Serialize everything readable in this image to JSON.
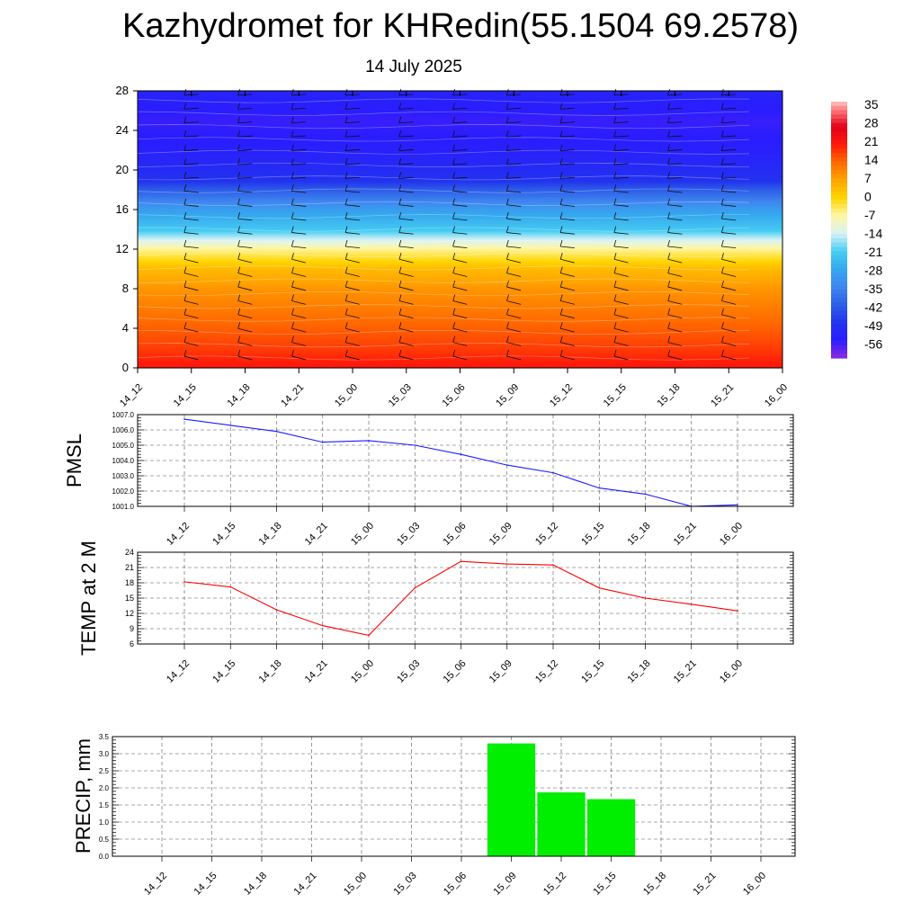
{
  "title": "Kazhydromet for KHRedin(55.1504 69.2578)",
  "subtitle": "14 July 2025",
  "chart_data": [
    {
      "type": "heatmap",
      "title": "",
      "xlabel": "",
      "ylabel": "",
      "x": [
        "14_12",
        "14_15",
        "14_18",
        "14_21",
        "15_00",
        "15_03",
        "15_06",
        "15_09",
        "15_12",
        "15_15",
        "15_18",
        "15_21",
        "16_00"
      ],
      "yticks": [
        0,
        4,
        8,
        12,
        16,
        20,
        24,
        28
      ],
      "ylim": [
        0,
        28
      ],
      "colorbar_labels": [
        35,
        28,
        21,
        14,
        7,
        0,
        -7,
        -14,
        -21,
        -28,
        -35,
        -42,
        -49,
        -56
      ],
      "colorbar_range": [
        -63,
        38
      ],
      "band_values": [
        {
          "level": 0,
          "value": 22
        },
        {
          "level": 2,
          "value": 18
        },
        {
          "level": 4,
          "value": 15
        },
        {
          "level": 6,
          "value": 12
        },
        {
          "level": 8,
          "value": 9
        },
        {
          "level": 10,
          "value": 4
        },
        {
          "level": 12,
          "value": -6
        },
        {
          "level": 13,
          "value": -14
        },
        {
          "level": 14,
          "value": -22
        },
        {
          "level": 16,
          "value": -30
        },
        {
          "level": 18,
          "value": -42
        },
        {
          "level": 19,
          "value": -50
        },
        {
          "level": 22,
          "value": -55
        },
        {
          "level": 25,
          "value": -57
        },
        {
          "level": 28,
          "value": -54
        }
      ],
      "wind_barbs": true,
      "colors": {
        "hot": "#ff1a0a",
        "warm": "#ffa500",
        "neutral": "#ffe000",
        "cold": "#1f8fe8",
        "cold_deep": "#1d2ee8"
      }
    },
    {
      "type": "line",
      "ylabel": "PMSL",
      "x": [
        "14_12",
        "14_15",
        "14_18",
        "14_21",
        "15_00",
        "15_03",
        "15_06",
        "15_09",
        "15_12",
        "15_15",
        "15_18",
        "15_21",
        "16_00"
      ],
      "values": [
        1006.7,
        1006.3,
        1005.9,
        1005.2,
        1005.3,
        1005.0,
        1004.4,
        1003.7,
        1003.2,
        1002.2,
        1001.8,
        1001.0,
        1001.1
      ],
      "yticks": [
        "1001.0",
        "1002.0",
        "1003.0",
        "1004.0",
        "1005.0",
        "1006.0",
        "1007.0"
      ],
      "ylim": [
        1001,
        1007
      ],
      "grid": true,
      "color": "#1a1aff"
    },
    {
      "type": "line",
      "ylabel": "TEMP at 2 M",
      "x": [
        "14_12",
        "14_15",
        "14_18",
        "14_21",
        "15_00",
        "15_03",
        "15_06",
        "15_09",
        "15_12",
        "15_15",
        "15_18",
        "15_21",
        "16_00"
      ],
      "values": [
        18.2,
        17.2,
        12.7,
        9.6,
        7.7,
        17.0,
        22.2,
        21.7,
        21.5,
        17.0,
        15.0,
        13.8,
        12.5
      ],
      "yticks": [
        "6",
        "9",
        "12",
        "15",
        "18",
        "21",
        "24"
      ],
      "ylim": [
        6,
        24
      ],
      "grid": true,
      "color": "#ff0000"
    },
    {
      "type": "bar",
      "ylabel": "PRECIP, mm",
      "categories": [
        "14_12",
        "14_15",
        "14_18",
        "14_21",
        "15_00",
        "15_03",
        "15_06",
        "15_09",
        "15_12",
        "15_15",
        "15_18",
        "15_21",
        "16_00"
      ],
      "values": [
        0,
        0,
        0,
        0,
        0,
        0,
        0,
        3.3,
        1.87,
        1.67,
        0,
        0,
        0
      ],
      "yticks": [
        "0.0",
        "0.5",
        "1.0",
        "1.5",
        "2.0",
        "2.5",
        "3.0",
        "3.5"
      ],
      "ylim": [
        0,
        3.5
      ],
      "grid": true,
      "color": "#00ee00"
    }
  ]
}
